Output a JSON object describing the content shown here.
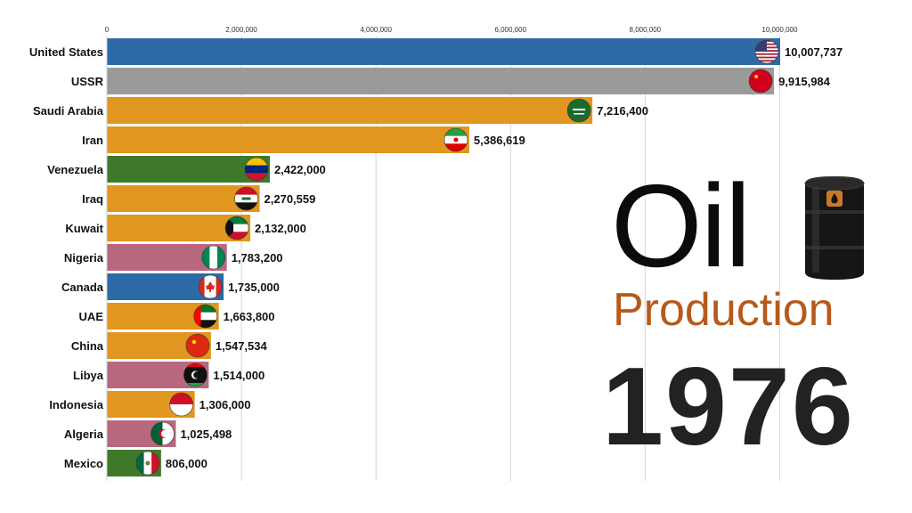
{
  "overlay": {
    "title": "Oil",
    "subtitle": "Production",
    "year": "1976",
    "subtitle_color": "#b65a1c",
    "icon": "oil-barrel-icon"
  },
  "chart_data": {
    "type": "bar",
    "orientation": "horizontal",
    "title": "",
    "xlabel": "",
    "ylabel": "",
    "xlim": [
      0,
      10007737
    ],
    "xticks": [
      0,
      2000000,
      4000000,
      6000000,
      8000000,
      10000000
    ],
    "xtick_labels": [
      "0",
      "2,000,000",
      "4,000,000",
      "6,000,000",
      "8,000,000",
      "10,000,000"
    ],
    "grid": "vertical",
    "categories": [
      "United States",
      "USSR",
      "Saudi Arabia",
      "Iran",
      "Venezuela",
      "Iraq",
      "Kuwait",
      "Nigeria",
      "Canada",
      "UAE",
      "China",
      "Libya",
      "Indonesia",
      "Algeria",
      "Mexico"
    ],
    "values": [
      10007737,
      9915984,
      7216400,
      5386619,
      2422000,
      2270559,
      2132000,
      1783200,
      1735000,
      1663800,
      1547534,
      1514000,
      1306000,
      1025498,
      806000
    ],
    "value_labels": [
      "10,007,737",
      "9,915,984",
      "7,216,400",
      "5,386,619",
      "2,422,000",
      "2,270,559",
      "2,132,000",
      "1,783,200",
      "1,735,000",
      "1,663,800",
      "1,547,534",
      "1,514,000",
      "1,306,000",
      "1,025,498",
      "806,000"
    ],
    "colors": [
      "#2e6aa6",
      "#9a9a9a",
      "#e0961f",
      "#e0961f",
      "#3f7a2b",
      "#e0961f",
      "#e0961f",
      "#b8687e",
      "#2e6aa6",
      "#e0961f",
      "#e0961f",
      "#b8687e",
      "#e0961f",
      "#b8687e",
      "#3f7a2b"
    ],
    "flag_icons": [
      "usa-flag-icon",
      "ussr-flag-icon",
      "saudi-arabia-flag-icon",
      "iran-flag-icon",
      "venezuela-flag-icon",
      "iraq-flag-icon",
      "kuwait-flag-icon",
      "nigeria-flag-icon",
      "canada-flag-icon",
      "uae-flag-icon",
      "china-flag-icon",
      "libya-flag-icon",
      "indonesia-flag-icon",
      "algeria-flag-icon",
      "mexico-flag-icon"
    ]
  }
}
